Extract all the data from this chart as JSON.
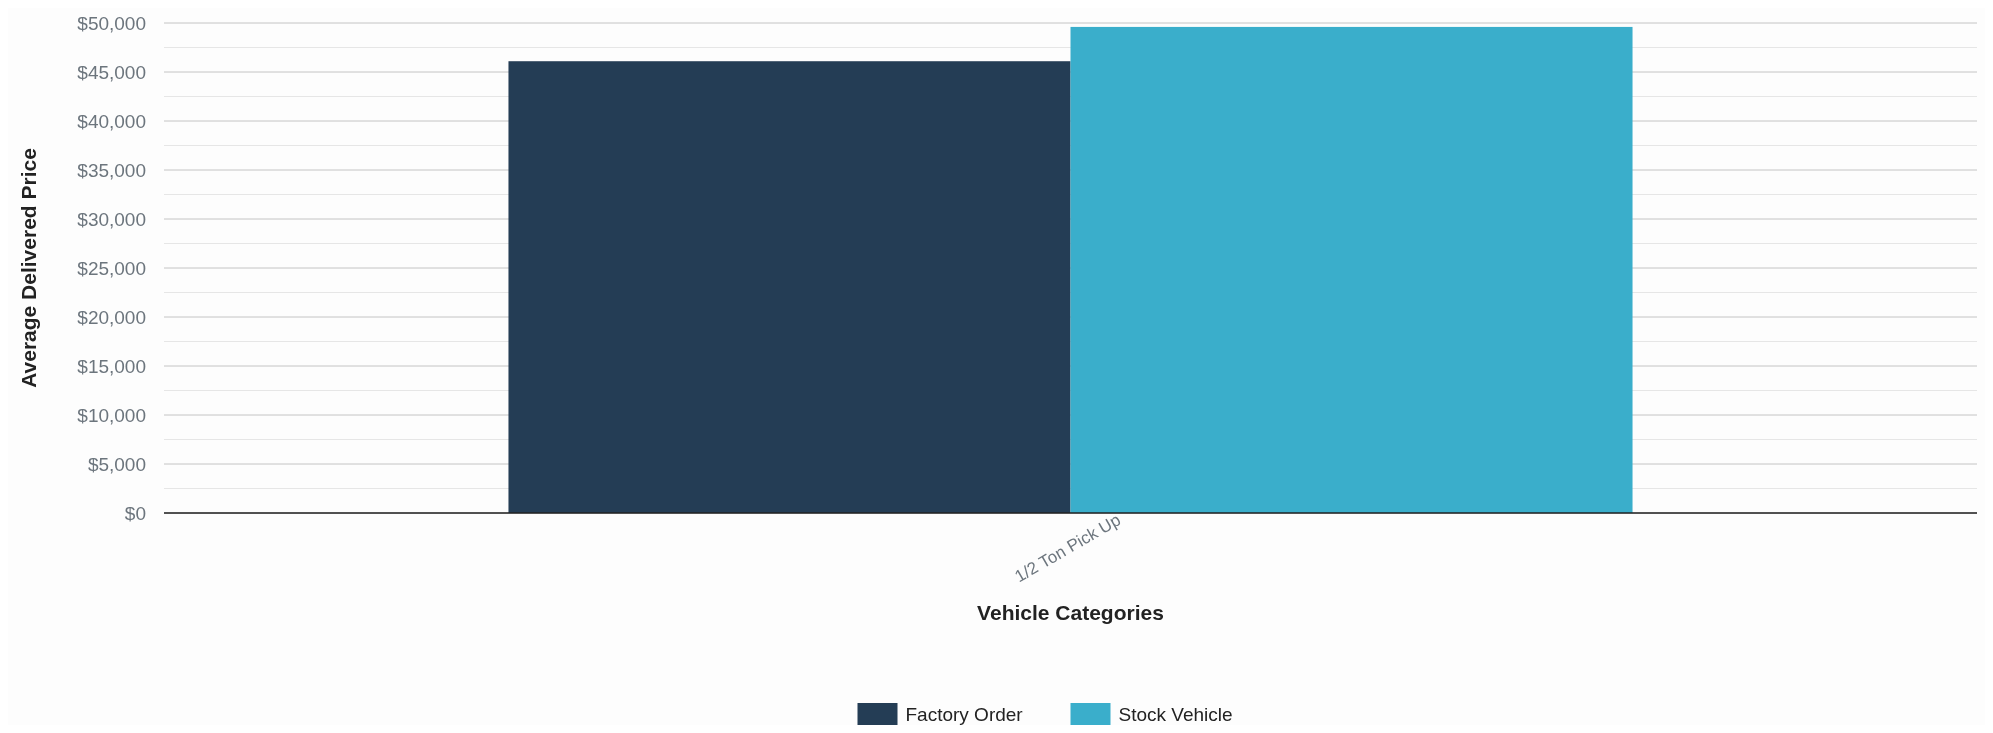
{
  "chart_data": {
    "type": "bar",
    "xlabel": "Vehicle Categories",
    "ylabel": "Average Delivered Price",
    "categories": [
      "1/2 Ton Pick Up"
    ],
    "series": [
      {
        "name": "Factory Order",
        "color": "#243d55",
        "values": [
          46100
        ]
      },
      {
        "name": "Stock Vehicle",
        "color": "#3aaecb",
        "values": [
          49600
        ]
      }
    ],
    "ylim": [
      0,
      50000
    ],
    "yticks": [
      {
        "value": 0,
        "label": "$0"
      },
      {
        "value": 2500,
        "label": null
      },
      {
        "value": 5000,
        "label": "$5,000"
      },
      {
        "value": 7500,
        "label": null
      },
      {
        "value": 10000,
        "label": "$10,000"
      },
      {
        "value": 12500,
        "label": null
      },
      {
        "value": 15000,
        "label": "$15,000"
      },
      {
        "value": 17500,
        "label": null
      },
      {
        "value": 20000,
        "label": "$20,000"
      },
      {
        "value": 22500,
        "label": null
      },
      {
        "value": 25000,
        "label": "$25,000"
      },
      {
        "value": 27500,
        "label": null
      },
      {
        "value": 30000,
        "label": "$30,000"
      },
      {
        "value": 32500,
        "label": null
      },
      {
        "value": 35000,
        "label": "$35,000"
      },
      {
        "value": 37500,
        "label": null
      },
      {
        "value": 40000,
        "label": "$40,000"
      },
      {
        "value": 42500,
        "label": null
      },
      {
        "value": 45000,
        "label": "$45,000"
      },
      {
        "value": 47500,
        "label": null
      },
      {
        "value": 50000,
        "label": "$50,000"
      }
    ],
    "grid": "y",
    "legend": "bottom"
  }
}
